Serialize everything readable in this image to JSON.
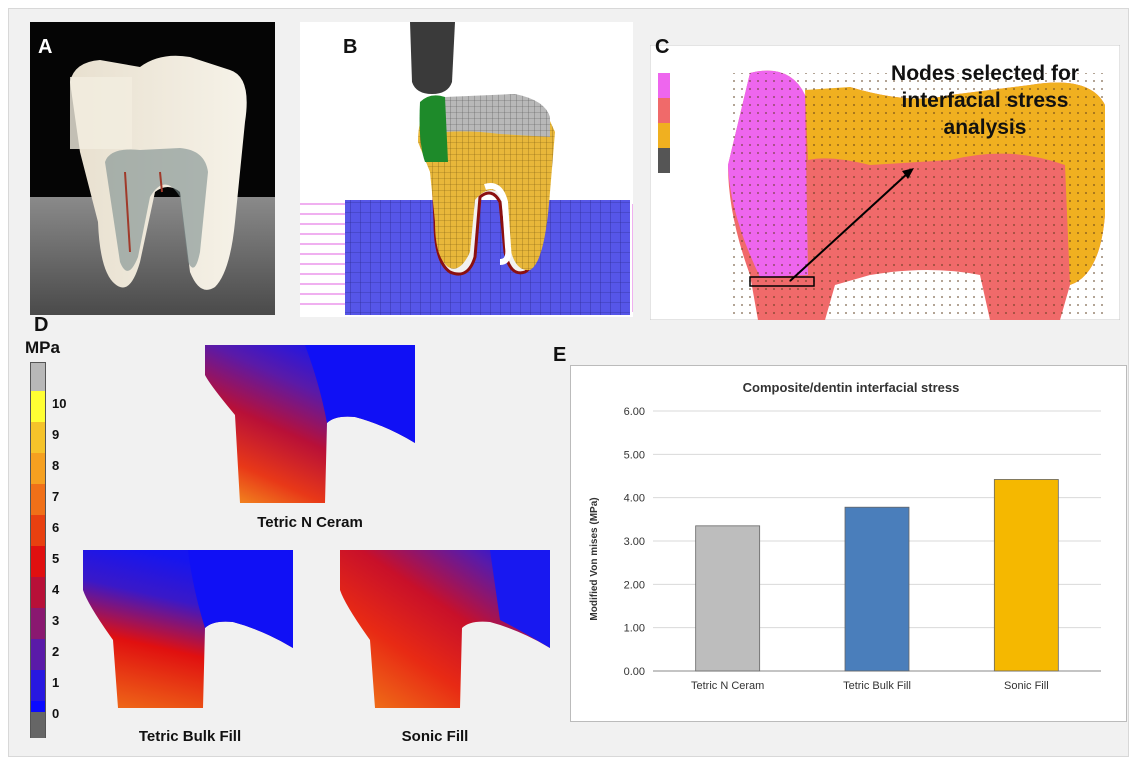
{
  "panels": {
    "a": {
      "letter": "A"
    },
    "b": {
      "letter": "B"
    },
    "c": {
      "letter": "C",
      "annotation": [
        "Nodes selected for",
        "interfacial stress",
        "analysis"
      ]
    },
    "d": {
      "letter": "D",
      "unit": "MPa",
      "scale_ticks": [
        "10",
        "9",
        "8",
        "7",
        "6",
        "5",
        "4",
        "3",
        "2",
        "1",
        "0"
      ],
      "scale_colors": [
        "#b8b8b8",
        "#ffff33",
        "#f5c32a",
        "#f5a020",
        "#f07018",
        "#e84010",
        "#e01010",
        "#b81038",
        "#8a1870",
        "#5a1aa8",
        "#2818e0",
        "#0a0aff",
        "#666666"
      ],
      "plot_labels": [
        "Tetric N Ceram",
        "Tetric Bulk Fill",
        "Sonic Fill"
      ]
    },
    "e": {
      "letter": "E"
    }
  },
  "chart_data": {
    "type": "bar",
    "title": "Composite/dentin interfacial stress",
    "ylabel": "Modified Von mises (MPa)",
    "xlabel": "",
    "categories": [
      "Tetric N Ceram",
      "Tetric Bulk Fill",
      "Sonic Fill"
    ],
    "values": [
      3.35,
      3.78,
      4.42
    ],
    "colors": [
      "#bdbdbd",
      "#4a7ebb",
      "#f5b800"
    ],
    "ylim": [
      0,
      6
    ],
    "yticks": [
      "0.00",
      "1.00",
      "2.00",
      "3.00",
      "4.00",
      "5.00",
      "6.00"
    ],
    "grid": true
  }
}
